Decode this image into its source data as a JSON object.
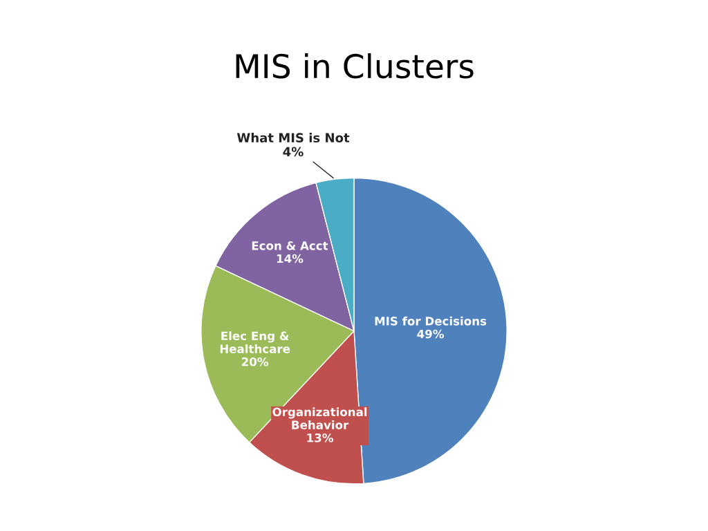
{
  "chart_data": {
    "type": "pie",
    "title": "MIS in Clusters",
    "categories": [
      "MIS for Decisions",
      "Organizational\nBehavior",
      "Elec Eng &\nHealthcare",
      "Econ & Acct",
      "What MIS is Not"
    ],
    "values": [
      49,
      13,
      20,
      14,
      4
    ],
    "value_labels": [
      "49%",
      "13%",
      "20%",
      "14%",
      "4%"
    ],
    "colors": [
      "#4f81bd",
      "#c0504d",
      "#9bbb59",
      "#8064a2",
      "#4bacc6"
    ]
  }
}
